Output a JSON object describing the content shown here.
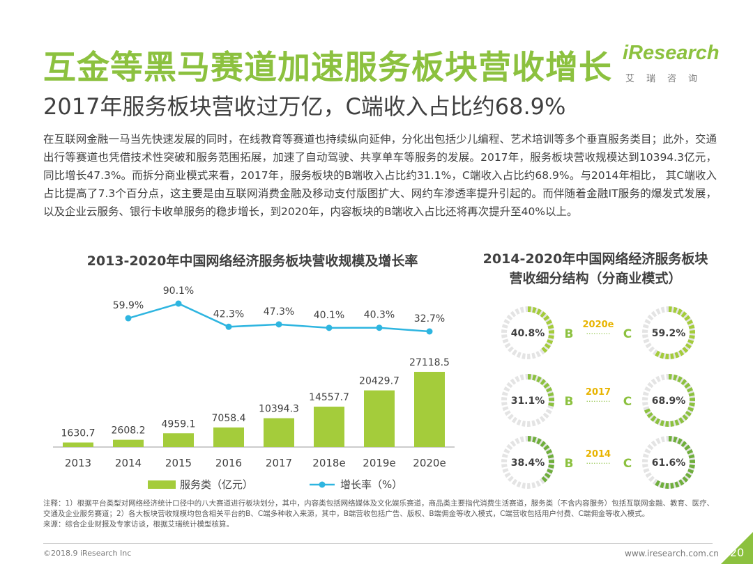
{
  "title": "互金等黑马赛道加速服务板块营收增长",
  "subtitle": "2017年服务板块营收过万亿，C端收入占比约68.9%",
  "logo": {
    "brand": "iResearch",
    "sub": "艾瑞咨询"
  },
  "body_text": "在互联网金融一马当先快速发展的同时，在线教育等赛道也持续纵向延伸，分化出包括少儿编程、艺术培训等多个垂直服务类目；此外，交通出行等赛道也凭借技术性突破和服务范围拓展，加速了自动驾驶、共享单车等服务的发展。2017年，服务板块营收规模达到10394.3亿元，同比增长47.3%。而拆分商业模式来看，2017年，服务板块的B端收入占比约31.1%，C端收入占比约68.9%。与2014年相比， 其C端收入占比提高了7.3个百分点，这主要是由互联网消费金融及移动支付版图扩大、网约车渗透率提升引起的。而伴随着金融IT服务的爆发式发展，以及企业云服务、银行卡收单服务的稳步增长，到2020年，内容板块的B端收入占比还将再次提升至40%以上。",
  "chart_data": [
    {
      "type": "bar",
      "title": "2013-2020年中国网络经济服务板块营收规模及增长率",
      "categories": [
        "2013",
        "2014",
        "2015",
        "2016",
        "2017",
        "2018e",
        "2019e",
        "2020e"
      ],
      "series": [
        {
          "name": "服务类（亿元）",
          "type": "bar",
          "color": "#a4cc3b",
          "values": [
            1630.7,
            2608.2,
            4959.1,
            7058.4,
            10394.3,
            14557.7,
            20429.7,
            27118.5
          ]
        },
        {
          "name": "增长率（%）",
          "type": "line",
          "color": "#2eb5e0",
          "values": [
            null,
            59.9,
            90.1,
            42.3,
            47.3,
            40.1,
            40.3,
            32.7
          ],
          "labels": [
            "",
            "59.9%",
            "90.1%",
            "42.3%",
            "47.3%",
            "40.1%",
            "40.3%",
            "32.7%"
          ]
        }
      ],
      "legend": [
        "服务类（亿元）",
        "增长率（%）"
      ],
      "legend_position": "bottom"
    },
    {
      "type": "pie",
      "title_line1": "2014-2020年中国网络经济服务板块",
      "title_line2": "营收细分结构（分商业模式）",
      "b_label": "B",
      "c_label": "C",
      "dots": "··········",
      "rows": [
        {
          "year": "2020e",
          "b_share": 40.8,
          "c_share": 59.2,
          "b_label": "40.8%",
          "c_label": "59.2%",
          "color": "#a4cc3b"
        },
        {
          "year": "2017",
          "b_share": 31.1,
          "c_share": 68.9,
          "b_label": "31.1%",
          "c_label": "68.9%",
          "color": "#8cc13f"
        },
        {
          "year": "2014",
          "b_share": 38.4,
          "c_share": 61.6,
          "b_label": "38.4%",
          "c_label": "61.6%",
          "color": "#6fae3c"
        }
      ]
    }
  ],
  "notes": [
    "注释：1）根据平台类型对网络经济统计口径中的八大赛道进行板块划分，其中，内容类包括网络媒体及文化娱乐赛道，商品类主要指代消费生活赛道，服务类（不含内容服务）包括互联网金融、教育、医疗、交通及企业服务赛道；2）各大板块营收规模均包含相关平台的B、C端多种收入来源，其中，B端营收包括广告、版权、B端佣金等收入模式，C端营收包括用户付费、C端佣金等收入模式。",
    "来源：综合企业财报及专家访谈，根据艾瑞统计模型核算。"
  ],
  "footer": {
    "left": "©2018.9 iResearch Inc",
    "url": "www.iresearch.com.cn",
    "page": "20"
  },
  "colors": {
    "green": "#8cc13f",
    "bar": "#a4cc3b",
    "line": "#2eb5e0",
    "year": "#e8b400"
  }
}
